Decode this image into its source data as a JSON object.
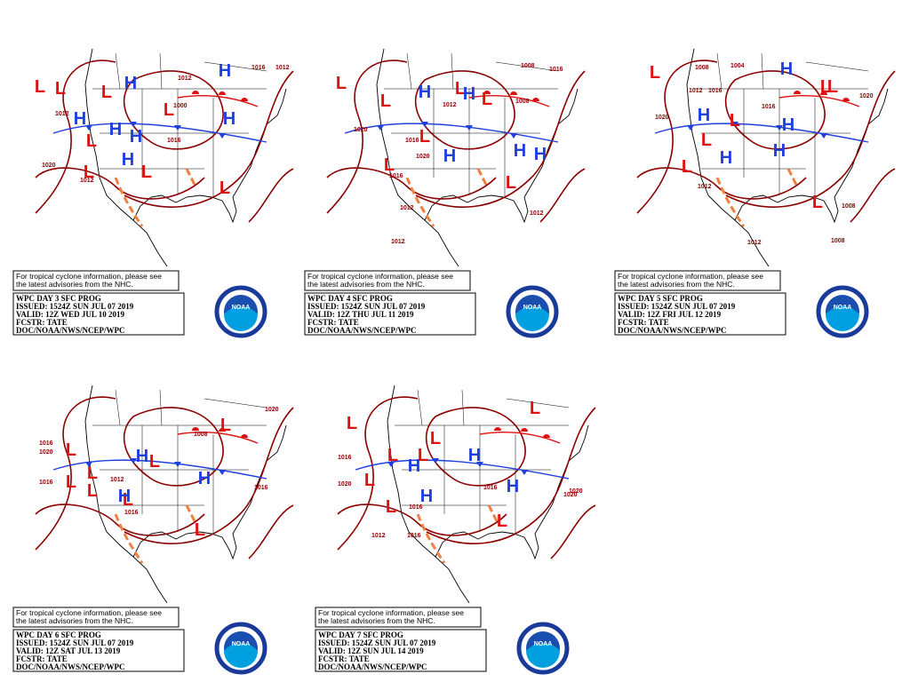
{
  "panels": [
    {
      "note": [
        "For tropical cyclone information, please see",
        "the latest advisories from the NHC."
      ],
      "info": [
        "WPC DAY 3 SFC PROG",
        "ISSUED: 1524Z SUN JUL 07 2019",
        "VALID: 12Z WED JUL 10 2019",
        "FCSTR: TATE",
        "DOC/NOAA/NWS/NCEP/WPC"
      ],
      "logo": "NOAA",
      "systems": [
        "L",
        "L",
        "H",
        "L",
        "H",
        "H",
        "H",
        "H",
        "L",
        "L",
        "L",
        "H",
        "L",
        "H",
        "L"
      ],
      "isobars": [
        "1012",
        "1016",
        "1012",
        "1000",
        "1012",
        "1020",
        "1016",
        "1012"
      ]
    },
    {
      "note": [
        "For tropical cyclone information, please see",
        "the latest advisories from the NHC."
      ],
      "info": [
        "WPC DAY 4 SFC PROG",
        "ISSUED: 1524Z SUN JUL 07 2019",
        "VALID: 12Z THU JUL 11 2019",
        "FCSTR: TATE",
        "DOC/NOAA/NWS/NCEP/WPC"
      ],
      "logo": "NOAA",
      "systems": [
        "L",
        "L",
        "H",
        "L",
        "L",
        "H",
        "H",
        "L",
        "H",
        "L",
        "H",
        "L"
      ],
      "isobars": [
        "1008",
        "1016",
        "1012",
        "1008",
        "1020",
        "1016",
        "1020",
        "1016",
        "1012",
        "1012",
        "1012"
      ]
    },
    {
      "note": [
        "For tropical cyclone information, please see",
        "the latest advisories from the NHC."
      ],
      "info": [
        "WPC DAY 5 SFC PROG",
        "ISSUED: 1524Z SUN JUL 07 2019",
        "VALID: 12Z FRI JUL 12 2019",
        "FCSTR: TATE",
        "DOC/NOAA/NWS/NCEP/WPC"
      ],
      "logo": "NOAA",
      "systems": [
        "L",
        "H",
        "L",
        "H",
        "L",
        "L",
        "L",
        "H",
        "H",
        "H",
        "L",
        "L"
      ],
      "isobars": [
        "1004",
        "1008",
        "1012",
        "1016",
        "1020",
        "1016",
        "1020",
        "1008",
        "1012",
        "1008",
        "1012"
      ]
    },
    {
      "note": [
        "For tropical cyclone information, please see",
        "the latest advisories from the NHC."
      ],
      "info": [
        "WPC DAY 6 SFC PROG",
        "ISSUED: 1524Z SUN JUL 07 2019",
        "VALID: 12Z SAT JUL 13 2019",
        "FCSTR: TATE",
        "DOC/NOAA/NWS/NCEP/WPC"
      ],
      "logo": "NOAA",
      "systems": [
        "L",
        "L",
        "H",
        "L",
        "L",
        "L",
        "L",
        "H",
        "H",
        "L",
        "L"
      ],
      "isobars": [
        "1020",
        "1016",
        "1008",
        "1020",
        "1012",
        "1016",
        "1016",
        "1016"
      ]
    },
    {
      "note": [
        "For tropical cyclone information, please see",
        "the latest advisories from the NHC."
      ],
      "info": [
        "WPC DAY 7 SFC PROG",
        "ISSUED: 1524Z SUN JUL 07 2019",
        "VALID: 12Z SUN JUL 14 2019",
        "FCSTR: TATE",
        "DOC/NOAA/NWS/NCEP/WPC"
      ],
      "logo": "NOAA",
      "systems": [
        "L",
        "L",
        "L",
        "L",
        "H",
        "H",
        "L",
        "H",
        "H",
        "L",
        "L",
        "L"
      ],
      "isobars": [
        "1016",
        "1020",
        "1020",
        "1016",
        "1016",
        "1012",
        "1016",
        "1020"
      ]
    }
  ]
}
